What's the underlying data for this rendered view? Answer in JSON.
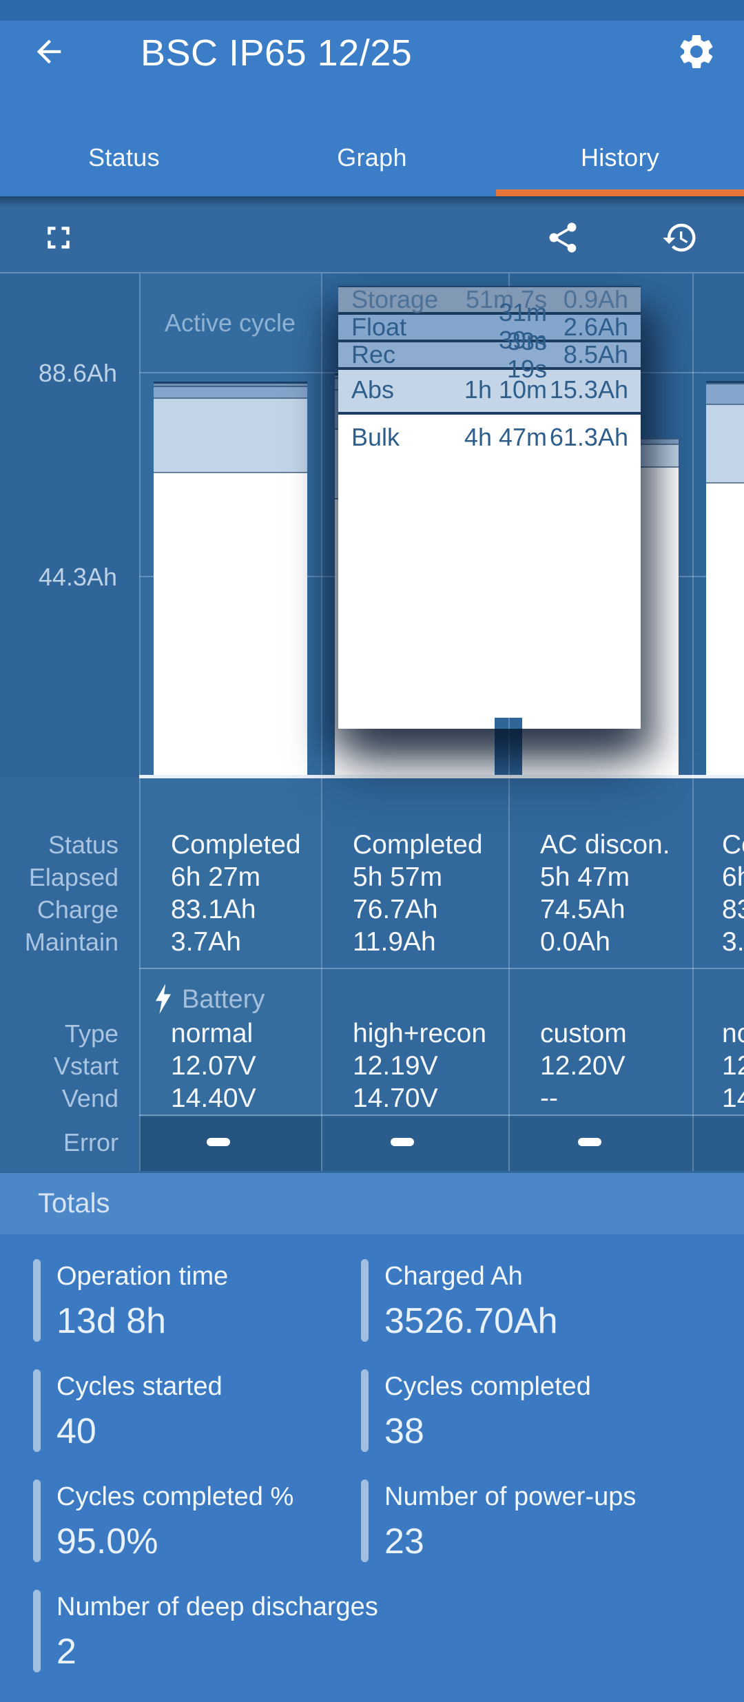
{
  "header": {
    "title": "BSC IP65 12/25"
  },
  "icons": {
    "back": "arrow-left",
    "settings": "gear",
    "fullscreen": "fullscreen-corners",
    "share": "share-nodes",
    "history": "history-clock"
  },
  "tabs": [
    {
      "label": "Status",
      "active": false
    },
    {
      "label": "Graph",
      "active": false
    },
    {
      "label": "History",
      "active": true
    }
  ],
  "accent_colors": {
    "tab_underline": "#E6763B",
    "app_bar": "#3B7DC6",
    "totals_panel": "#3B7AC2"
  },
  "chart_data": {
    "type": "bar",
    "stacked": true,
    "column_header": "Active cycle",
    "y_ticks": [
      {
        "label": "88.6Ah",
        "value": 88.6
      },
      {
        "label": "44.3Ah",
        "value": 44.3
      }
    ],
    "ylim": [
      0,
      110
    ],
    "phases_legend": [
      "Storage",
      "Float",
      "Rec",
      "Abs",
      "Bulk"
    ],
    "bars": [
      {
        "name": "active-cycle",
        "total_ah": 86.8,
        "segments": [
          {
            "phase": "storage",
            "ah": 0.9
          },
          {
            "phase": "float",
            "ah": 2.6
          },
          {
            "phase": "abs",
            "ah": 16.3
          },
          {
            "phase": "bulk",
            "ah": 67.0
          }
        ]
      },
      {
        "name": "cycle-2",
        "total_ah": 88.6,
        "selected": true,
        "segments": [
          {
            "phase": "storage",
            "ah": 0.9
          },
          {
            "phase": "float",
            "ah": 2.6
          },
          {
            "phase": "rec",
            "ah": 8.5
          },
          {
            "phase": "abs",
            "ah": 15.3
          },
          {
            "phase": "bulk",
            "ah": 61.3
          }
        ]
      },
      {
        "name": "cycle-3",
        "total_ah": 74.5,
        "segments": [
          {
            "phase": "float",
            "ah": 1.3
          },
          {
            "phase": "abs",
            "ah": 4.9
          },
          {
            "phase": "bulk",
            "ah": 68.3
          }
        ]
      },
      {
        "name": "cycle-4",
        "total_ah": 87.0,
        "segments": [
          {
            "phase": "storage",
            "ah": 0.4
          },
          {
            "phase": "float",
            "ah": 4.6
          },
          {
            "phase": "abs",
            "ah": 17.2
          },
          {
            "phase": "bulk",
            "ah": 64.8
          }
        ]
      }
    ]
  },
  "popup": {
    "rows": [
      {
        "phase": "Storage",
        "duration": "51m 7s",
        "amount": "0.9Ah"
      },
      {
        "phase": "Float",
        "duration": "31m 33s",
        "amount": "2.6Ah"
      },
      {
        "phase": "Rec",
        "duration": "39m 19s",
        "amount": "8.5Ah"
      },
      {
        "phase": "Abs",
        "duration": "1h 10m",
        "amount": "15.3Ah"
      },
      {
        "phase": "Bulk",
        "duration": "4h 47m",
        "amount": "61.3Ah"
      }
    ]
  },
  "table": {
    "row_labels": {
      "status": "Status",
      "elapsed": "Elapsed",
      "charge": "Charge",
      "maintain": "Maintain",
      "type": "Type",
      "vstart": "Vstart",
      "vend": "Vend",
      "error": "Error"
    },
    "battery_section_label": "Battery",
    "columns": [
      {
        "status": "Completed",
        "elapsed": "6h 27m",
        "charge": "83.1Ah",
        "maintain": "3.7Ah",
        "type": "normal",
        "vstart": "12.07V",
        "vend": "14.40V",
        "error": "–"
      },
      {
        "status": "Completed",
        "elapsed": "5h 57m",
        "charge": "76.7Ah",
        "maintain": "11.9Ah",
        "type": "high+recon",
        "vstart": "12.19V",
        "vend": "14.70V",
        "error": "–"
      },
      {
        "status": "AC discon.",
        "elapsed": "5h 47m",
        "charge": "74.5Ah",
        "maintain": "0.0Ah",
        "type": "custom",
        "vstart": "12.20V",
        "vend": "--",
        "error": "–"
      },
      {
        "status": "Co",
        "elapsed": "6h",
        "charge": "83",
        "maintain": "3.",
        "type": "no",
        "vstart": "12",
        "vend": "14",
        "error": ""
      }
    ]
  },
  "totals": {
    "title": "Totals",
    "items": [
      {
        "label": "Operation time",
        "value": "13d 8h"
      },
      {
        "label": "Charged Ah",
        "value": "3526.70Ah"
      },
      {
        "label": "Cycles started",
        "value": "40"
      },
      {
        "label": "Cycles completed",
        "value": "38"
      },
      {
        "label": "Cycles completed %",
        "value": "95.0%"
      },
      {
        "label": "Number of power-ups",
        "value": "23"
      },
      {
        "label": "Number of deep discharges",
        "value": "2"
      }
    ]
  }
}
